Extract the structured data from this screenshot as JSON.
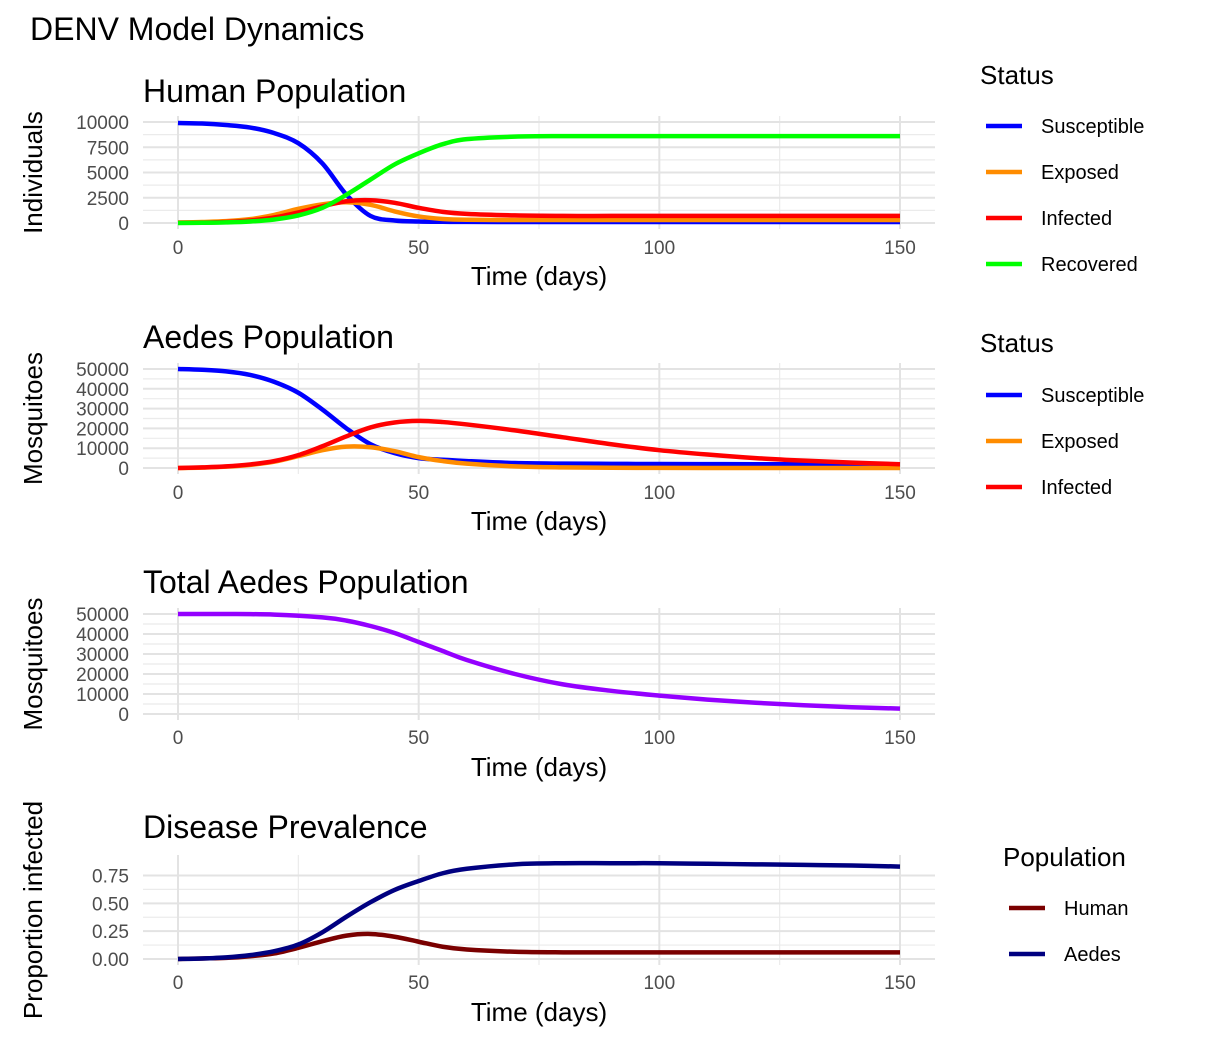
{
  "page_title": "DENV Model Dynamics",
  "chart_data": [
    {
      "type": "line",
      "title": "Human Population",
      "xlabel": "Time (days)",
      "ylabel": "Individuals",
      "xlim": [
        0,
        150
      ],
      "ylim": [
        0,
        10000
      ],
      "xticks": [
        0,
        50,
        100,
        150
      ],
      "yticks": [
        0,
        2500,
        5000,
        7500,
        10000
      ],
      "ytick_labels": [
        "0",
        "2500",
        "5000",
        "7500",
        "10000"
      ],
      "grid": true,
      "legend": {
        "title": "Status",
        "placement": "right"
      },
      "x": [
        0,
        5,
        10,
        15,
        20,
        25,
        30,
        35,
        40,
        45,
        50,
        55,
        60,
        70,
        80,
        90,
        100,
        110,
        120,
        130,
        140,
        150
      ],
      "series": [
        {
          "name": "Susceptible",
          "color": "#0000FF",
          "values": [
            9900,
            9850,
            9700,
            9450,
            8900,
            7900,
            5900,
            2800,
            700,
            250,
            150,
            120,
            110,
            100,
            100,
            100,
            100,
            100,
            100,
            100,
            100,
            100
          ]
        },
        {
          "name": "Exposed",
          "color": "#FF8C00",
          "values": [
            50,
            100,
            180,
            380,
            800,
            1400,
            1850,
            2050,
            1800,
            1150,
            650,
            400,
            320,
            300,
            300,
            300,
            300,
            300,
            300,
            300,
            300,
            300
          ]
        },
        {
          "name": "Infected",
          "color": "#FF0000",
          "values": [
            20,
            40,
            100,
            250,
            550,
            1050,
            1650,
            2150,
            2250,
            2000,
            1500,
            1100,
            900,
            750,
            700,
            700,
            700,
            700,
            700,
            700,
            700,
            700
          ]
        },
        {
          "name": "Recovered",
          "color": "#00FF00",
          "values": [
            0,
            20,
            60,
            150,
            350,
            750,
            1500,
            2800,
            4300,
            5800,
            6900,
            7800,
            8300,
            8550,
            8600,
            8600,
            8600,
            8600,
            8600,
            8600,
            8600,
            8600
          ]
        }
      ]
    },
    {
      "type": "line",
      "title": "Aedes Population",
      "xlabel": "Time (days)",
      "ylabel": "Mosquitoes",
      "xlim": [
        0,
        150
      ],
      "ylim": [
        0,
        50000
      ],
      "xticks": [
        0,
        50,
        100,
        150
      ],
      "yticks": [
        0,
        10000,
        20000,
        30000,
        40000,
        50000
      ],
      "ytick_labels": [
        "0",
        "10000",
        "20000",
        "30000",
        "40000",
        "50000"
      ],
      "grid": true,
      "legend": {
        "title": "Status",
        "placement": "right"
      },
      "x": [
        0,
        5,
        10,
        15,
        20,
        25,
        30,
        35,
        40,
        45,
        50,
        55,
        60,
        70,
        80,
        90,
        100,
        110,
        120,
        130,
        140,
        150
      ],
      "series": [
        {
          "name": "Susceptible",
          "color": "#0000FF",
          "values": [
            50000,
            49600,
            48800,
            47000,
            43500,
            38000,
            29500,
            20000,
            12000,
            7500,
            5000,
            4200,
            3500,
            2500,
            2200,
            2100,
            2000,
            1950,
            1900,
            1900,
            1900,
            1900
          ]
        },
        {
          "name": "Exposed",
          "color": "#FF8C00",
          "values": [
            0,
            200,
            700,
            1600,
            3200,
            6000,
            9000,
            10800,
            10500,
            8500,
            5500,
            3500,
            2200,
            800,
            300,
            100,
            50,
            30,
            20,
            10,
            10,
            10
          ]
        },
        {
          "name": "Infected",
          "color": "#FF0000",
          "values": [
            0,
            300,
            800,
            1800,
            3500,
            6500,
            11000,
            16000,
            20500,
            23000,
            23800,
            23200,
            22000,
            19000,
            15500,
            12000,
            9000,
            6800,
            5000,
            3700,
            2700,
            1900
          ]
        }
      ]
    },
    {
      "type": "line",
      "title": "Total Aedes Population",
      "xlabel": "Time (days)",
      "ylabel": "Mosquitoes",
      "xlim": [
        0,
        150
      ],
      "ylim": [
        0,
        50000
      ],
      "xticks": [
        0,
        50,
        100,
        150
      ],
      "yticks": [
        0,
        10000,
        20000,
        30000,
        40000,
        50000
      ],
      "ytick_labels": [
        "0",
        "10000",
        "20000",
        "30000",
        "40000",
        "50000"
      ],
      "grid": true,
      "x": [
        0,
        10,
        20,
        30,
        35,
        40,
        45,
        50,
        55,
        60,
        70,
        80,
        90,
        100,
        110,
        120,
        130,
        140,
        150
      ],
      "series": [
        {
          "color": "#9400FF",
          "values": [
            50000,
            50000,
            49700,
            48300,
            46700,
            44000,
            40500,
            36000,
            31500,
            27000,
            20000,
            14800,
            11600,
            9200,
            7200,
            5600,
            4400,
            3400,
            2700
          ]
        }
      ]
    },
    {
      "type": "line",
      "title": "Disease Prevalence",
      "xlabel": "Time (days)",
      "ylabel": "Proportion infected",
      "xlim": [
        0,
        150
      ],
      "ylim": [
        0,
        0.88
      ],
      "xticks": [
        0,
        50,
        100,
        150
      ],
      "yticks": [
        0,
        0.25,
        0.5,
        0.75
      ],
      "ytick_labels": [
        "0.00",
        "0.25",
        "0.50",
        "0.75"
      ],
      "grid": true,
      "legend": {
        "title": "Population",
        "placement": "right"
      },
      "x": [
        0,
        5,
        10,
        15,
        20,
        25,
        30,
        35,
        40,
        45,
        50,
        55,
        60,
        70,
        80,
        90,
        100,
        110,
        120,
        130,
        140,
        150
      ],
      "series": [
        {
          "name": "Human",
          "color": "#7A0000",
          "values": [
            0.0,
            0.005,
            0.01,
            0.025,
            0.05,
            0.1,
            0.16,
            0.21,
            0.225,
            0.2,
            0.155,
            0.11,
            0.085,
            0.065,
            0.06,
            0.06,
            0.06,
            0.06,
            0.06,
            0.06,
            0.06,
            0.06
          ]
        },
        {
          "name": "Aedes",
          "color": "#000080",
          "values": [
            0.0,
            0.005,
            0.015,
            0.035,
            0.07,
            0.13,
            0.24,
            0.38,
            0.51,
            0.62,
            0.7,
            0.77,
            0.81,
            0.85,
            0.86,
            0.86,
            0.86,
            0.855,
            0.85,
            0.845,
            0.84,
            0.83
          ]
        }
      ]
    }
  ]
}
